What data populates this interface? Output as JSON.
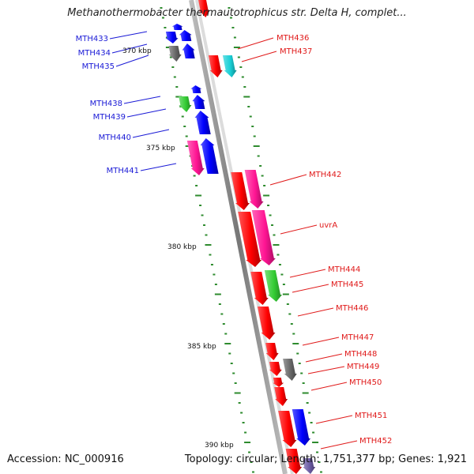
{
  "title": "Methanothermobacter thermautotrophicus str. Delta H, complet...",
  "footer": {
    "accession": "Accession: NC_000916",
    "summary": "Topology: circular; Length: 1,751,377 bp; Genes: 1,921"
  },
  "scale_labels": [
    "370 kbp",
    "375 kbp",
    "380 kbp",
    "385 kbp",
    "390 kbp"
  ],
  "colors": {
    "backbone": "#8f8f8f",
    "tick": "#2e8b2e",
    "left_label": "#1a1ad6",
    "right_label": "#e01a1a",
    "red": "#ff0000",
    "blue": "#0000ff",
    "gray": "#666666",
    "green": "#33cc33",
    "magenta": "#ff1493",
    "cyan": "#18cfd6",
    "violet": "#6b5ca5"
  },
  "genes_left": [
    {
      "name": "MTH433",
      "color": "blue"
    },
    {
      "name": "MTH434",
      "color": "blue"
    },
    {
      "name": "MTH435",
      "color": "blue"
    },
    {
      "name": "MTH438",
      "color": "green"
    },
    {
      "name": "MTH439",
      "color": "blue"
    },
    {
      "name": "MTH440",
      "color": "blue"
    },
    {
      "name": "MTH441",
      "color": "magenta"
    }
  ],
  "genes_right": [
    {
      "name": "MTH436",
      "color": "red"
    },
    {
      "name": "MTH437",
      "color": "cyan"
    },
    {
      "name": "MTH442",
      "color": "red"
    },
    {
      "name": "uvrA",
      "color": "red"
    },
    {
      "name": "MTH444",
      "color": "red"
    },
    {
      "name": "MTH445",
      "color": "green"
    },
    {
      "name": "MTH446",
      "color": "red"
    },
    {
      "name": "MTH447",
      "color": "red"
    },
    {
      "name": "MTH448",
      "color": "gray"
    },
    {
      "name": "MTH449",
      "color": "red"
    },
    {
      "name": "MTH450",
      "color": "red"
    },
    {
      "name": "MTH451",
      "color": "blue"
    },
    {
      "name": "MTH452",
      "color": "red"
    }
  ]
}
